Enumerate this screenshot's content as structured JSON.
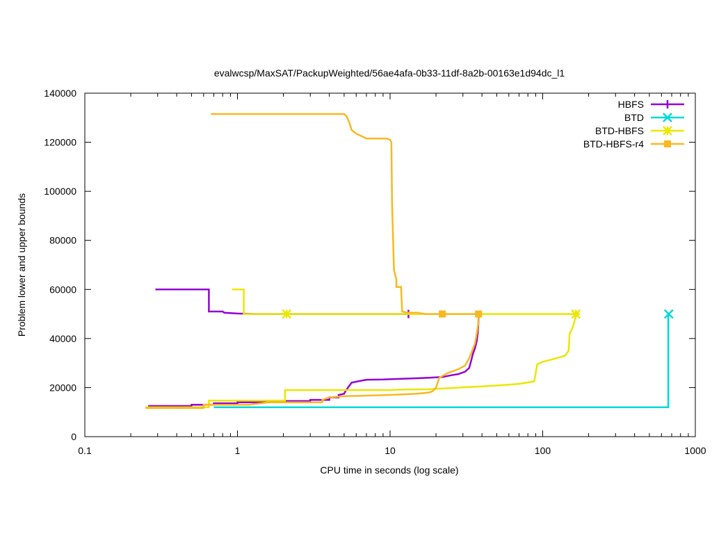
{
  "chart_data": {
    "type": "line",
    "title": "evalwcsp/MaxSAT/PackupWeighted/56ae4afa-0b33-11df-8a2b-00163e1d94dc_l1",
    "xlabel": "CPU time in seconds (log scale)",
    "ylabel": "Problem lower and upper bounds",
    "xscale": "log",
    "xlim": [
      0.1,
      1000
    ],
    "ylim": [
      0,
      140000
    ],
    "x_ticks": [
      0.1,
      1,
      10,
      100,
      1000
    ],
    "x_tick_labels": [
      "0.1",
      "1",
      "10",
      "100",
      "1000"
    ],
    "y_ticks": [
      0,
      20000,
      40000,
      60000,
      80000,
      100000,
      120000,
      140000
    ],
    "y_tick_labels": [
      "0",
      "20000",
      "40000",
      "60000",
      "80000",
      "100000",
      "120000",
      "140000"
    ],
    "grid": false,
    "legend_position": "top-right",
    "series": [
      {
        "name": "HBFS",
        "color": "#9400d3",
        "marker": "plus-icon",
        "marker_points": [
          [
            13.2,
            50000
          ]
        ],
        "lines": [
          [
            [
              0.29,
              60000
            ],
            [
              0.65,
              60000
            ],
            [
              0.65,
              51000
            ],
            [
              0.8,
              51000
            ],
            [
              0.82,
              50500
            ],
            [
              1.0,
              50200
            ],
            [
              1.3,
              50000
            ],
            [
              13.2,
              50000
            ]
          ],
          [
            [
              0.26,
              12500
            ],
            [
              0.5,
              12500
            ],
            [
              0.5,
              13000
            ],
            [
              0.7,
              13000
            ],
            [
              0.7,
              13600
            ],
            [
              1.0,
              13600
            ],
            [
              1.0,
              14000
            ],
            [
              1.6,
              14000
            ],
            [
              1.6,
              14500
            ],
            [
              3.0,
              14500
            ],
            [
              3.0,
              15000
            ],
            [
              4.0,
              15000
            ],
            [
              4.0,
              16000
            ],
            [
              4.6,
              16000
            ],
            [
              4.6,
              17000
            ],
            [
              5.0,
              17500
            ],
            [
              5.1,
              18500
            ],
            [
              5.3,
              20000
            ],
            [
              5.6,
              22000
            ],
            [
              6.2,
              22600
            ],
            [
              7.0,
              23200
            ],
            [
              9.0,
              23300
            ],
            [
              12.0,
              23600
            ],
            [
              15.0,
              23800
            ],
            [
              18.0,
              24000
            ],
            [
              22.0,
              24300
            ],
            [
              25.0,
              25000
            ],
            [
              28.0,
              25500
            ],
            [
              31.0,
              26500
            ],
            [
              33.0,
              28000
            ],
            [
              34.0,
              31000
            ],
            [
              35.0,
              34000
            ],
            [
              36.0,
              36000
            ],
            [
              37.0,
              39000
            ],
            [
              37.5,
              42000
            ],
            [
              37.8,
              45000
            ],
            [
              38.0,
              48000
            ],
            [
              38.1,
              50000
            ]
          ]
        ]
      },
      {
        "name": "BTD",
        "color": "#00d8d8",
        "marker": "x-icon",
        "marker_points": [
          [
            670,
            50000
          ]
        ],
        "lines": [
          [
            [
              0.7,
              12000
            ],
            [
              665,
              12000
            ],
            [
              665,
              50000
            ]
          ]
        ]
      },
      {
        "name": "BTD-HBFS",
        "color": "#e8e800",
        "marker": "asterisk-icon",
        "marker_points": [
          [
            2.1,
            50000
          ],
          [
            165,
            50000
          ]
        ],
        "lines": [
          [
            [
              0.92,
              60000
            ],
            [
              1.1,
              60000
            ],
            [
              1.1,
              50000
            ],
            [
              165,
              50000
            ]
          ],
          [
            [
              0.25,
              12000
            ],
            [
              0.65,
              12000
            ],
            [
              0.65,
              14700
            ],
            [
              2.05,
              14700
            ],
            [
              2.05,
              19000
            ],
            [
              10.0,
              19000
            ],
            [
              12.0,
              19200
            ],
            [
              18.0,
              19300
            ],
            [
              25.0,
              19800
            ],
            [
              30.0,
              20100
            ],
            [
              40.0,
              20500
            ],
            [
              55.0,
              21000
            ],
            [
              70.0,
              21500
            ],
            [
              88.0,
              22500
            ],
            [
              90.0,
              26000
            ],
            [
              92.0,
              29500
            ],
            [
              100.0,
              30500
            ],
            [
              120.0,
              31800
            ],
            [
              140.0,
              33000
            ],
            [
              148.0,
              35000
            ],
            [
              150.0,
              42000
            ],
            [
              156.0,
              44000
            ],
            [
              160.0,
              46000
            ],
            [
              163.0,
              48000
            ],
            [
              165.0,
              50000
            ]
          ]
        ]
      },
      {
        "name": "BTD-HBFS-r4",
        "color": "#f8b820",
        "marker": "square-icon",
        "marker_points": [
          [
            22,
            50000
          ],
          [
            38,
            50000
          ]
        ],
        "lines": [
          [
            [
              0.67,
              131500
            ],
            [
              5.0,
              131500
            ],
            [
              5.2,
              130500
            ],
            [
              5.4,
              128000
            ],
            [
              5.6,
              125000
            ],
            [
              6.0,
              123500
            ],
            [
              6.5,
              122500
            ],
            [
              7.0,
              121500
            ],
            [
              9.5,
              121500
            ],
            [
              10.0,
              121000
            ],
            [
              10.2,
              120000
            ],
            [
              10.3,
              96000
            ],
            [
              10.6,
              68000
            ],
            [
              11.0,
              64000
            ],
            [
              11.0,
              61000
            ],
            [
              11.8,
              61000
            ],
            [
              12.0,
              51000
            ],
            [
              13.0,
              50500
            ],
            [
              15.0,
              50500
            ],
            [
              17.0,
              50000
            ],
            [
              38.0,
              50000
            ]
          ],
          [
            [
              0.25,
              11700
            ],
            [
              0.6,
              11700
            ],
            [
              0.6,
              13000
            ],
            [
              1.2,
              13000
            ],
            [
              1.6,
              14000
            ],
            [
              3.6,
              14000
            ],
            [
              3.6,
              15000
            ],
            [
              4.0,
              16000
            ],
            [
              5.0,
              16500
            ],
            [
              10.0,
              17000
            ],
            [
              15.0,
              17500
            ],
            [
              18.0,
              18000
            ],
            [
              19.0,
              18500
            ],
            [
              20.0,
              20000
            ],
            [
              21.0,
              24000
            ],
            [
              24.0,
              26000
            ],
            [
              28.0,
              27500
            ],
            [
              31.0,
              29000
            ],
            [
              33.0,
              32000
            ],
            [
              34.5,
              35000
            ],
            [
              36.0,
              38000
            ],
            [
              37.0,
              42000
            ],
            [
              37.8,
              46000
            ],
            [
              38.0,
              50000
            ]
          ]
        ]
      }
    ]
  }
}
